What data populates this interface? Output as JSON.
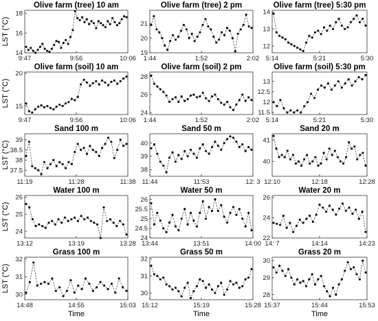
{
  "chart_data": [
    {
      "type": "line",
      "title": "Olive farm (tree) 10 am",
      "ylabel": "LST (°C)",
      "xlabel": "",
      "ylim": [
        14,
        18.3
      ],
      "yticks": [
        "14",
        "16",
        "18"
      ],
      "xticks": [
        "9:47",
        "9:56",
        "10:06"
      ],
      "values": [
        14.6,
        14.3,
        14.5,
        14.2,
        14.0,
        14.3,
        14.6,
        14.9,
        14.4,
        14.2,
        14.1,
        14.4,
        14.8,
        15.2,
        15.1,
        14.5,
        15.0,
        15.3,
        14.9,
        15.6,
        16.3,
        18.2,
        17.5,
        17.3,
        17.6,
        17.1,
        17.4,
        16.9,
        17.2,
        17.0,
        16.5,
        17.2,
        17.0,
        16.8,
        16.6,
        17.2,
        16.9,
        17.5,
        17.1,
        16.8,
        17.0,
        17.4,
        17.7,
        17.6
      ]
    },
    {
      "type": "line",
      "title": "Olive farm (tree) 2 pm",
      "ylabel": "",
      "xlabel": "",
      "ylim": [
        19,
        21.9
      ],
      "yticks": [
        "19",
        "20",
        "21"
      ],
      "xticks": [
        "1:44",
        "1:52",
        "2:02"
      ],
      "values": [
        20.9,
        21.5,
        20.6,
        20.4,
        20.0,
        19.5,
        19.2,
        19.8,
        20.2,
        19.9,
        20.1,
        20.5,
        20.9,
        20.6,
        20.0,
        20.3,
        19.8,
        20.1,
        20.4,
        20.9,
        21.3,
        20.8,
        20.6,
        20.1,
        19.7,
        19.9,
        20.4,
        20.2,
        20.7,
        20.5,
        20.0,
        19.1,
        20.3,
        20.6,
        20.9,
        21.6,
        20.8,
        20.7
      ]
    },
    {
      "type": "line",
      "title": "Olive farm (tree) 5:30 pm",
      "ylabel": "",
      "xlabel": "",
      "ylim": [
        11.6,
        14.1
      ],
      "yticks": [
        "12",
        "13",
        "14"
      ],
      "xticks": [
        "5:14",
        "5:21",
        "5:30"
      ],
      "values": [
        13.9,
        12.8,
        12.6,
        12.5,
        12.4,
        12.2,
        12.1,
        12.0,
        11.9,
        11.8,
        11.7,
        12.2,
        12.6,
        12.5,
        12.8,
        12.9,
        12.7,
        13.1,
        12.9,
        13.2,
        13.0,
        13.4,
        13.6,
        13.2,
        13.0,
        13.1,
        13.4,
        13.6,
        13.8,
        13.4,
        13.6,
        13.2
      ]
    },
    {
      "type": "line",
      "title": "Olive farm (soil) 10 am",
      "ylabel": "LST (°C)",
      "xlabel": "",
      "ylim": [
        13.7,
        20.2
      ],
      "yticks": [
        "15",
        "20"
      ],
      "xticks": [
        "9:47",
        "9:56",
        "10:06"
      ],
      "values": [
        15.4,
        14.2,
        14.0,
        14.5,
        14.9,
        15.1,
        14.8,
        15.0,
        14.7,
        14.5,
        14.9,
        15.2,
        15.0,
        15.4,
        15.6,
        16.1,
        15.9,
        16.4,
        18.3,
        19.0,
        18.6,
        18.1,
        18.5,
        18.8,
        18.3,
        18.9,
        18.6,
        18.2,
        18.7,
        18.9,
        18.4,
        18.8,
        19.2,
        19.5
      ]
    },
    {
      "type": "line",
      "title": "Olive farm (soil) 2 pm",
      "ylabel": "",
      "xlabel": "",
      "ylim": [
        23.8,
        28.5
      ],
      "yticks": [
        "24",
        "26",
        "28"
      ],
      "xticks": [
        "1:44",
        "1:52",
        "2:02"
      ],
      "values": [
        28.1,
        27.2,
        26.9,
        26.6,
        26.3,
        25.9,
        25.2,
        25.5,
        25.7,
        25.2,
        25.8,
        25.3,
        25.5,
        25.9,
        26.0,
        25.7,
        25.8,
        26.2,
        25.6,
        25.3,
        25.8,
        26.0,
        25.5,
        25.1,
        24.9,
        25.2,
        24.6,
        24.3,
        24.9,
        25.4,
        26.0,
        25.3,
        25.7,
        25.4
      ]
    },
    {
      "type": "line",
      "title": "Olive farm (soil) 5:30 pm",
      "ylabel": "",
      "xlabel": "",
      "ylim": [
        11.4,
        13.45
      ],
      "yticks": [
        "11.5",
        "12",
        "12.5",
        "13"
      ],
      "xticks": [
        "5:14",
        "5:21",
        "5:30"
      ],
      "values": [
        12.0,
        11.8,
        12.1,
        11.7,
        11.5,
        11.6,
        11.5,
        11.6,
        11.5,
        11.8,
        12.0,
        12.4,
        12.2,
        12.6,
        12.8,
        12.7,
        12.9,
        12.6,
        12.8,
        13.0,
        12.7,
        12.9,
        13.1,
        12.8,
        13.0,
        13.2,
        13.1,
        13.3
      ]
    },
    {
      "type": "line",
      "title": "Sand 100 m",
      "ylabel": "LST (°C)",
      "xlabel": "",
      "ylim": [
        37.2,
        39.3
      ],
      "yticks": [
        "37.5",
        "38",
        "38.5",
        "39"
      ],
      "xticks": [
        "11:19",
        "11:28",
        "11:38"
      ],
      "values": [
        38.2,
        38.9,
        37.7,
        37.6,
        37.5,
        37.3,
        37.9,
        37.6,
        37.8,
        38.0,
        37.7,
        37.9,
        37.8,
        37.6,
        37.9,
        37.8,
        38.4,
        38.8,
        38.5,
        38.6,
        38.3,
        38.7,
        38.5,
        38.4,
        38.2,
        38.6,
        38.8,
        39.1,
        38.9,
        38.1,
        38.5,
        39.0,
        38.7,
        38.8
      ]
    },
    {
      "type": "line",
      "title": "Sand 50 m",
      "ylabel": "",
      "xlabel": "",
      "ylim": [
        37.5,
        40.7
      ],
      "yticks": [
        "38",
        "39",
        "40"
      ],
      "xticks": [
        "11:44",
        "11:53",
        "12: 3"
      ],
      "values": [
        39.6,
        39.9,
        39.2,
        38.6,
        38.3,
        37.8,
        38.9,
        39.3,
        38.6,
        39.1,
        38.8,
        39.4,
        39.0,
        39.5,
        39.2,
        38.9,
        39.6,
        39.9,
        39.4,
        39.2,
        39.7,
        40.1,
        39.8,
        39.5,
        40.0,
        40.3,
        40.5,
        40.4,
        40.1,
        39.7,
        39.9,
        39.4,
        39.7,
        39.5
      ]
    },
    {
      "type": "line",
      "title": "Sand 20 m",
      "ylabel": "",
      "xlabel": "",
      "ylim": [
        39.3,
        41.3
      ],
      "yticks": [
        "40",
        "41"
      ],
      "xticks": [
        "12:10",
        "12:18",
        "12:28"
      ],
      "values": [
        41.2,
        40.6,
        40.2,
        40.3,
        40.2,
        40.5,
        40.1,
        40.3,
        39.9,
        40.0,
        39.8,
        40.1,
        40.3,
        39.9,
        40.0,
        40.2,
        39.8,
        39.9,
        40.4,
        40.1,
        40.6,
        40.3,
        40.5,
        40.2,
        40.0,
        39.9,
        40.2,
        40.9,
        40.6,
        40.7,
        40.1,
        40.3,
        40.4,
        39.8
      ]
    },
    {
      "type": "line",
      "title": "Water 100 m",
      "ylabel": "LST (°C)",
      "xlabel": "",
      "ylim": [
        23.6,
        26.1
      ],
      "yticks": [
        "24",
        "25",
        "26"
      ],
      "xticks": [
        "13:12",
        "13:19",
        "13:28"
      ],
      "values": [
        25.6,
        25.4,
        24.7,
        24.3,
        24.4,
        24.3,
        24.2,
        24.5,
        24.6,
        24.4,
        24.7,
        24.5,
        24.8,
        24.6,
        24.7,
        24.8,
        24.6,
        24.9,
        24.7,
        24.8,
        24.6,
        24.5,
        24.4,
        23.6,
        25.4,
        24.6,
        24.7,
        24.5,
        24.3,
        24.6,
        24.4,
        23.8
      ]
    },
    {
      "type": "line",
      "title": "Water 50 m",
      "ylabel": "",
      "xlabel": "",
      "ylim": [
        24,
        26.2
      ],
      "yticks": [
        "24",
        "24.5",
        "25",
        "25.5",
        "26"
      ],
      "xticks": [
        "13:44",
        "13:51",
        "14:00"
      ],
      "values": [
        25.8,
        24.7,
        25.3,
        24.9,
        24.5,
        24.3,
        24.8,
        25.2,
        24.6,
        24.4,
        25.0,
        25.5,
        24.7,
        25.3,
        24.9,
        24.6,
        25.3,
        25.9,
        25.0,
        25.6,
        25.4,
        26.0,
        25.4,
        25.7,
        25.1,
        24.8,
        25.3,
        25.6,
        25.2,
        25.5,
        25.0,
        24.6,
        25.3,
        24.4
      ]
    },
    {
      "type": "line",
      "title": "Water 20 m",
      "ylabel": "",
      "xlabel": "",
      "ylim": [
        22,
        26.2
      ],
      "yticks": [
        "22",
        "24",
        "26"
      ],
      "xticks": [
        "14: 7",
        "14:14",
        "14:23"
      ],
      "values": [
        23.5,
        23.4,
        23.3,
        24.2,
        23.0,
        23.5,
        22.6,
        23.2,
        23.8,
        23.5,
        23.9,
        24.2,
        23.6,
        24.3,
        25.3,
        25.0,
        24.6,
        25.2,
        24.8,
        24.3,
        24.9,
        25.4,
        24.7,
        25.0,
        24.4,
        24.8,
        23.9,
        24.6,
        22.6
      ]
    },
    {
      "type": "line",
      "title": "Grass 100 m",
      "ylabel": "LST (°C)",
      "xlabel": "Time",
      "ylim": [
        29.7,
        32.1
      ],
      "yticks": [
        "30",
        "31",
        "32"
      ],
      "xticks": [
        "14:48",
        "14:55",
        "15:03"
      ],
      "values": [
        30.1,
        30.7,
        31.8,
        30.5,
        30.6,
        30.7,
        30.6,
        30.9,
        30.2,
        30.4,
        29.9,
        30.2,
        30.8,
        30.1,
        30.5,
        30.3,
        30.9,
        30.6,
        30.2,
        30.4,
        30.7,
        30.5,
        30.3,
        30.6,
        30.1,
        30.9,
        30.4,
        30.2
      ]
    },
    {
      "type": "line",
      "title": "Grass 50 m",
      "ylabel": "",
      "xlabel": "Time",
      "ylim": [
        29.6,
        32.1
      ],
      "yticks": [
        "30",
        "31",
        "32"
      ],
      "xticks": [
        "15:12",
        "15:19",
        "15:28"
      ],
      "values": [
        31.6,
        31.1,
        31.0,
        30.8,
        30.9,
        30.5,
        30.4,
        30.2,
        30.3,
        30.1,
        29.8,
        30.3,
        30.6,
        29.7,
        30.1,
        30.4,
        30.8,
        30.7,
        30.3,
        30.5,
        30.2,
        30.0,
        30.4,
        30.6,
        29.9,
        30.2,
        30.7,
        30.5,
        30.6,
        30.3,
        30.4,
        30.8,
        30.9,
        31.4
      ]
    },
    {
      "type": "line",
      "title": "Grass 20 m",
      "ylabel": "",
      "xlabel": "Time",
      "ylim": [
        27.7,
        30.2
      ],
      "yticks": [
        "28",
        "29",
        "30"
      ],
      "xticks": [
        "15:37",
        "15:44",
        "15:53"
      ],
      "values": [
        29.6,
        29.3,
        29.7,
        29.4,
        29.1,
        29.5,
        29.0,
        28.6,
        28.9,
        28.7,
        28.8,
        28.5,
        28.9,
        29.2,
        28.6,
        28.9,
        29.1,
        28.5,
        28.2,
        27.9,
        28.4,
        28.0,
        28.6,
        28.9,
        29.4,
        29.9,
        29.5,
        29.6,
        29.2,
        28.9,
        30.0,
        29.3
      ]
    }
  ]
}
